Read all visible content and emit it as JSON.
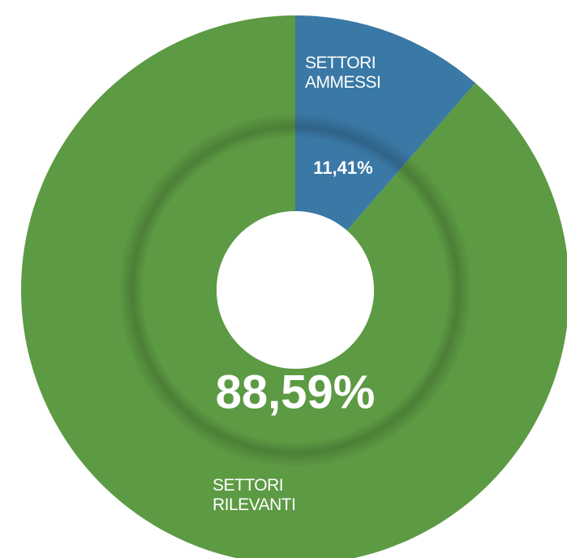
{
  "chart_data": {
    "type": "pie",
    "categories": [
      "SETTORI AMMESSI",
      "SETTORI RILEVANTI"
    ],
    "values": [
      11.41,
      88.59
    ],
    "value_labels": [
      "11,41%",
      "88,59%"
    ],
    "colors": [
      "#3a78a5",
      "#5c9a43"
    ]
  }
}
